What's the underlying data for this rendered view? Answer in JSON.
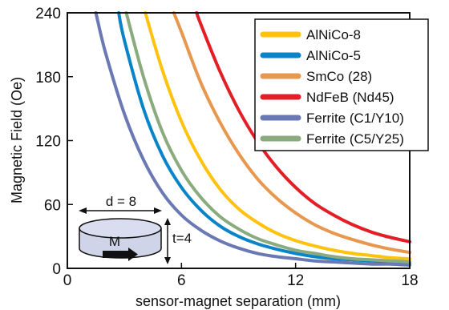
{
  "chart_data": {
    "type": "line",
    "title": "",
    "xlabel": "sensor-magnet separation (mm)",
    "ylabel": "Magnetic Field (Oe)",
    "xlim": [
      0,
      18
    ],
    "ylim": [
      0,
      240
    ],
    "x_ticks": [
      "0",
      "6",
      "12",
      "18"
    ],
    "y_ticks": [
      "0",
      "60",
      "120",
      "180",
      "240"
    ],
    "grid": false,
    "legend_position": "top-right",
    "series": [
      {
        "name": "AlNiCo-8",
        "color": "#ffc20e",
        "points": [
          [
            4.1,
            240
          ],
          [
            5,
            186
          ],
          [
            6,
            138
          ],
          [
            7,
            102
          ],
          [
            8,
            75
          ],
          [
            9,
            56
          ],
          [
            10,
            43
          ],
          [
            11,
            33
          ],
          [
            12,
            26
          ],
          [
            13,
            21
          ],
          [
            14,
            17
          ],
          [
            15,
            14
          ],
          [
            16,
            12
          ],
          [
            17,
            10
          ],
          [
            18,
            9
          ]
        ]
      },
      {
        "name": "AlNiCo-5",
        "color": "#0a84c9",
        "points": [
          [
            2.7,
            240
          ],
          [
            3,
            214
          ],
          [
            4,
            150
          ],
          [
            5,
            106
          ],
          [
            6,
            76
          ],
          [
            7,
            55
          ],
          [
            8,
            40
          ],
          [
            9,
            30
          ],
          [
            10,
            23
          ],
          [
            11,
            18
          ],
          [
            12,
            14
          ],
          [
            13,
            11
          ],
          [
            14,
            9
          ],
          [
            15,
            8
          ],
          [
            16,
            7
          ],
          [
            17,
            6
          ],
          [
            18,
            5
          ]
        ]
      },
      {
        "name": "SmCo (28)",
        "color": "#e8974f",
        "points": [
          [
            5.6,
            240
          ],
          [
            6,
            222
          ],
          [
            7,
            175
          ],
          [
            8,
            138
          ],
          [
            9,
            108
          ],
          [
            10,
            84
          ],
          [
            11,
            66
          ],
          [
            12,
            52
          ],
          [
            13,
            41
          ],
          [
            14,
            33
          ],
          [
            15,
            27
          ],
          [
            16,
            22
          ],
          [
            17,
            18
          ],
          [
            18,
            15
          ]
        ]
      },
      {
        "name": "NdFeB (Nd45)",
        "color": "#e31e26",
        "points": [
          [
            6.8,
            240
          ],
          [
            7,
            230
          ],
          [
            8,
            186
          ],
          [
            9,
            149
          ],
          [
            10,
            119
          ],
          [
            11,
            95
          ],
          [
            12,
            76
          ],
          [
            13,
            61
          ],
          [
            14,
            50
          ],
          [
            15,
            41
          ],
          [
            16,
            34
          ],
          [
            17,
            29
          ],
          [
            18,
            25
          ]
        ]
      },
      {
        "name": "Ferrite (C1/Y10)",
        "color": "#6a79b3",
        "points": [
          [
            1.5,
            240
          ],
          [
            2,
            203
          ],
          [
            3,
            145
          ],
          [
            4,
            102
          ],
          [
            5,
            71
          ],
          [
            6,
            50
          ],
          [
            7,
            36
          ],
          [
            8,
            26
          ],
          [
            9,
            19
          ],
          [
            10,
            14
          ],
          [
            11,
            11
          ],
          [
            12,
            9
          ],
          [
            13,
            7
          ],
          [
            14,
            6
          ],
          [
            15,
            5
          ],
          [
            16,
            4
          ],
          [
            17,
            4
          ],
          [
            18,
            3
          ]
        ]
      },
      {
        "name": "Ferrite (C5/Y25)",
        "color": "#8aab7e",
        "points": [
          [
            3.1,
            240
          ],
          [
            4,
            180
          ],
          [
            5,
            128
          ],
          [
            6,
            92
          ],
          [
            7,
            67
          ],
          [
            8,
            49
          ],
          [
            9,
            37
          ],
          [
            10,
            28
          ],
          [
            11,
            22
          ],
          [
            12,
            17
          ],
          [
            13,
            14
          ],
          [
            14,
            11
          ],
          [
            15,
            9
          ],
          [
            16,
            8
          ],
          [
            17,
            7
          ],
          [
            18,
            6
          ]
        ]
      }
    ]
  },
  "inset": {
    "diameter_label": "d = 8",
    "thickness_label": "t=4",
    "magnetization_label": "M"
  }
}
